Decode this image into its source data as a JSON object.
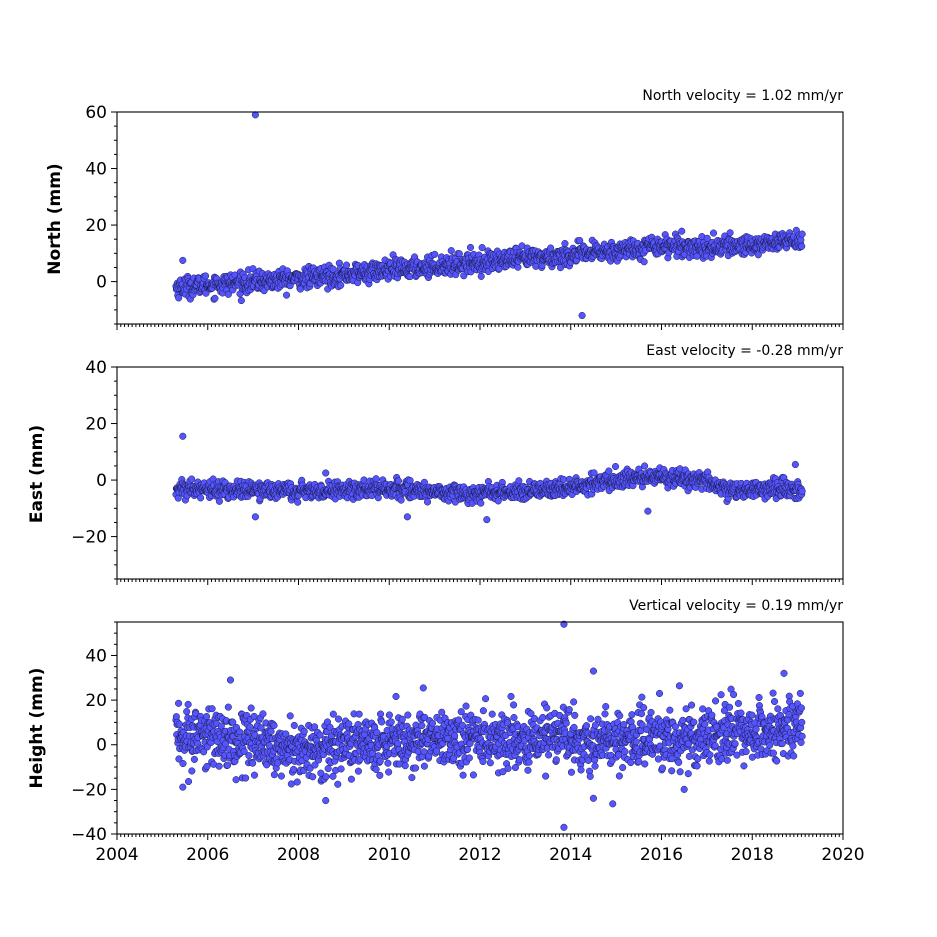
{
  "chart_data": [
    {
      "type": "scatter",
      "title": "North velocity = 1.02 mm/yr",
      "xlabel": "",
      "ylabel": "North (mm)",
      "xlim": [
        2004,
        2020
      ],
      "ylim": [
        -15,
        60
      ],
      "xticks": [
        2004,
        2006,
        2008,
        2010,
        2012,
        2014,
        2016,
        2018,
        2020
      ],
      "yticks": [
        0,
        20,
        40,
        60
      ],
      "ytick_labels": [
        "0",
        "20",
        "40",
        "60"
      ],
      "color": "#5555ff",
      "series": [
        {
          "trend": [
            [
              2005.3,
              -2
            ],
            [
              2008,
              1
            ],
            [
              2010,
              4
            ],
            [
              2012,
              7
            ],
            [
              2013.8,
              9
            ],
            [
              2015,
              11
            ],
            [
              2016,
              13
            ],
            [
              2017,
              12
            ],
            [
              2018,
              13
            ],
            [
              2019.1,
              15
            ]
          ],
          "scatter_sd": 1.8,
          "count": 1400,
          "outliers": [
            [
              2007.05,
              59
            ],
            [
              2014.25,
              -12
            ],
            [
              2005.45,
              7.5
            ]
          ]
        }
      ]
    },
    {
      "type": "scatter",
      "title": "East velocity = -0.28 mm/yr",
      "xlabel": "",
      "ylabel": "East (mm)",
      "xlim": [
        2004,
        2020
      ],
      "ylim": [
        -35,
        40
      ],
      "xticks": [
        2004,
        2006,
        2008,
        2010,
        2012,
        2014,
        2016,
        2018,
        2020
      ],
      "yticks": [
        -20,
        0,
        20,
        40
      ],
      "ytick_labels": [
        "−20",
        "0",
        "20",
        "40"
      ],
      "color": "#5555ff",
      "series": [
        {
          "trend": [
            [
              2005.3,
              -3
            ],
            [
              2008,
              -4
            ],
            [
              2010,
              -3
            ],
            [
              2012,
              -5
            ],
            [
              2013.8,
              -3
            ],
            [
              2015,
              0
            ],
            [
              2016,
              1
            ],
            [
              2017,
              0
            ],
            [
              2017.5,
              -4
            ],
            [
              2019.1,
              -3
            ]
          ],
          "scatter_sd": 1.5,
          "count": 1400,
          "outliers": [
            [
              2005.45,
              15.5
            ],
            [
              2007.05,
              -13
            ],
            [
              2010.4,
              -13
            ],
            [
              2012.15,
              -14
            ],
            [
              2015.7,
              -11
            ],
            [
              2018.95,
              5.5
            ],
            [
              2008.6,
              2.5
            ]
          ]
        }
      ]
    },
    {
      "type": "scatter",
      "title": "Vertical velocity = 0.19 mm/yr",
      "xlabel": "",
      "ylabel": "Height (mm)",
      "xlim": [
        2004,
        2020
      ],
      "ylim": [
        -40,
        55
      ],
      "xticks": [
        2004,
        2006,
        2008,
        2010,
        2012,
        2014,
        2016,
        2018,
        2020
      ],
      "xtick_labels": [
        "2004",
        "2006",
        "2008",
        "2010",
        "2012",
        "2014",
        "2016",
        "2018",
        "2020"
      ],
      "yticks": [
        -40,
        -20,
        0,
        20,
        40
      ],
      "ytick_labels": [
        "−40",
        "−20",
        "0",
        "20",
        "40"
      ],
      "color": "#5555ff",
      "series": [
        {
          "trend": [
            [
              2005.3,
              4
            ],
            [
              2007,
              2
            ],
            [
              2008.5,
              -2
            ],
            [
              2010,
              2
            ],
            [
              2012,
              3
            ],
            [
              2014,
              2
            ],
            [
              2016,
              3
            ],
            [
              2018,
              6
            ],
            [
              2019.1,
              8
            ]
          ],
          "scatter_sd": 6.5,
          "count": 1700,
          "outliers": [
            [
              2013.85,
              54
            ],
            [
              2013.85,
              -37
            ],
            [
              2014.5,
              33
            ],
            [
              2018.7,
              32
            ],
            [
              2006.5,
              29
            ],
            [
              2008.6,
              -25
            ],
            [
              2014.5,
              -24
            ],
            [
              2016.5,
              -20
            ],
            [
              2005.45,
              -19
            ]
          ]
        }
      ]
    }
  ]
}
